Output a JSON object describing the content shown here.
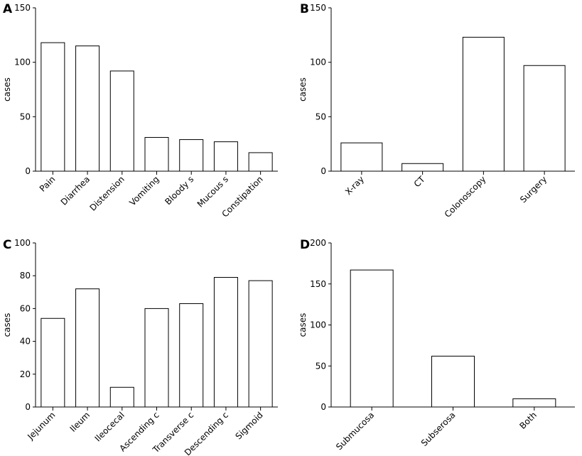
{
  "chart_data": [
    {
      "panel": "A",
      "type": "bar",
      "categories": [
        "Pain",
        "Diarrhea",
        "Distension",
        "Vomiting",
        "Bloody s",
        "Mucous s",
        "Constipation"
      ],
      "values": [
        118,
        115,
        92,
        31,
        29,
        27,
        17
      ],
      "ylabel": "cases",
      "xlabel": "",
      "ylim": [
        0,
        150
      ],
      "yticks": [
        0,
        50,
        100,
        150
      ],
      "grid": false
    },
    {
      "panel": "B",
      "type": "bar",
      "categories": [
        "X-ray",
        "CT",
        "Colonoscopy",
        "Surgery"
      ],
      "values": [
        26,
        7,
        123,
        97
      ],
      "ylabel": "cases",
      "xlabel": "",
      "ylim": [
        0,
        150
      ],
      "yticks": [
        0,
        50,
        100,
        150
      ],
      "grid": false
    },
    {
      "panel": "C",
      "type": "bar",
      "categories": [
        "Jejunum",
        "Ileum",
        "Ileocecal",
        "Ascending c",
        "Transverse c",
        "Descending c",
        "Sigmoid"
      ],
      "values": [
        54,
        72,
        12,
        60,
        63,
        79,
        77
      ],
      "ylabel": "cases",
      "xlabel": "",
      "ylim": [
        0,
        100
      ],
      "yticks": [
        0,
        20,
        40,
        60,
        80,
        100
      ],
      "grid": false
    },
    {
      "panel": "D",
      "type": "bar",
      "categories": [
        "Submucosa",
        "Subserosa",
        "Both"
      ],
      "values": [
        167,
        62,
        10
      ],
      "ylabel": "cases",
      "xlabel": "",
      "ylim": [
        0,
        200
      ],
      "yticks": [
        0,
        50,
        100,
        150,
        200
      ],
      "grid": false
    }
  ]
}
